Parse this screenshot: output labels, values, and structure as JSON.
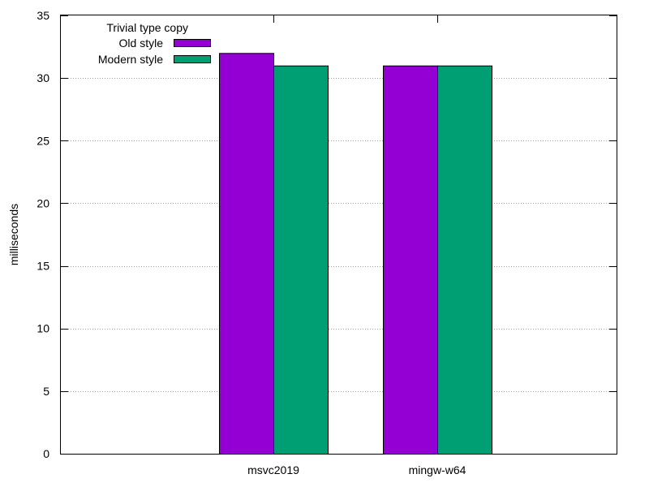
{
  "chart_data": {
    "type": "bar",
    "title": "",
    "xlabel": "",
    "ylabel": "milliseconds",
    "ylim": [
      0,
      35
    ],
    "yticks": [
      0,
      5,
      10,
      15,
      20,
      25,
      30,
      35
    ],
    "grid": true,
    "legend": {
      "title": "Trivial type copy",
      "placement": "top-left"
    },
    "categories": [
      "msvc2019",
      "mingw-w64"
    ],
    "series": [
      {
        "name": "Old style",
        "color": "#9400d3",
        "values": [
          32,
          31
        ]
      },
      {
        "name": "Modern style",
        "color": "#009e73",
        "values": [
          31,
          31
        ]
      }
    ]
  }
}
